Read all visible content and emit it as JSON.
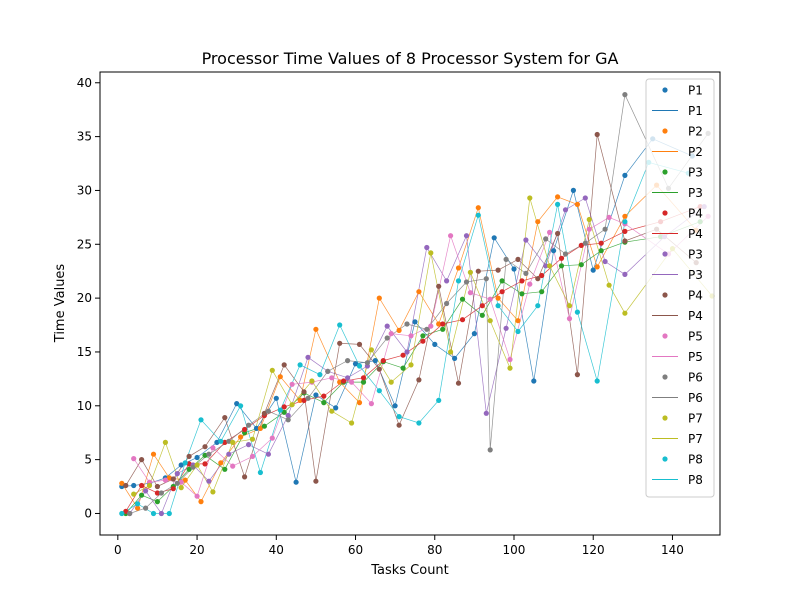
{
  "chart_data": {
    "type": "scatter",
    "title": "Processor Time Values of 8 Processor System for GA",
    "xlabel": "Tasks Count",
    "ylabel": "Time Values",
    "xlim": [
      -4.5,
      152
    ],
    "ylim": [
      -2,
      41
    ],
    "xticks": [
      0,
      20,
      40,
      60,
      80,
      100,
      120,
      140
    ],
    "yticks": [
      0,
      5,
      10,
      15,
      20,
      25,
      30,
      35,
      40
    ],
    "grid": false,
    "legend_position": "top-right",
    "legend": [
      {
        "label": "P1",
        "kind": "marker",
        "color": "#1f77b4"
      },
      {
        "label": "P1",
        "kind": "line",
        "color": "#1f77b4"
      },
      {
        "label": "P2",
        "kind": "marker",
        "color": "#ff7f0e"
      },
      {
        "label": "P2",
        "kind": "line",
        "color": "#ff7f0e"
      },
      {
        "label": "P3",
        "kind": "marker",
        "color": "#2ca02c"
      },
      {
        "label": "P3",
        "kind": "line",
        "color": "#2ca02c"
      },
      {
        "label": "P4",
        "kind": "marker",
        "color": "#d62728"
      },
      {
        "label": "P4",
        "kind": "line",
        "color": "#d62728"
      },
      {
        "label": "P3",
        "kind": "marker",
        "color": "#9467bd"
      },
      {
        "label": "P3",
        "kind": "line",
        "color": "#9467bd"
      },
      {
        "label": "P4",
        "kind": "marker",
        "color": "#8c564b"
      },
      {
        "label": "P4",
        "kind": "line",
        "color": "#8c564b"
      },
      {
        "label": "P5",
        "kind": "marker",
        "color": "#e377c2"
      },
      {
        "label": "P5",
        "kind": "line",
        "color": "#e377c2"
      },
      {
        "label": "P6",
        "kind": "marker",
        "color": "#7f7f7f"
      },
      {
        "label": "P6",
        "kind": "line",
        "color": "#7f7f7f"
      },
      {
        "label": "P7",
        "kind": "marker",
        "color": "#bcbd22"
      },
      {
        "label": "P7",
        "kind": "line",
        "color": "#bcbd22"
      },
      {
        "label": "P8",
        "kind": "marker",
        "color": "#17becf"
      },
      {
        "label": "P8",
        "kind": "line",
        "color": "#17becf"
      }
    ],
    "series": [
      {
        "color": "#1f77b4",
        "x": [
          1,
          4,
          8,
          12,
          16,
          20,
          25,
          30,
          35,
          40,
          45,
          50,
          55,
          60,
          65,
          70,
          75,
          80,
          85,
          90,
          95,
          100,
          105,
          110,
          115,
          120,
          128,
          135,
          145
        ],
        "y": [
          2.5,
          2.6,
          2.8,
          3.3,
          4.5,
          5.2,
          6.6,
          10.2,
          7.9,
          10.7,
          2.9,
          11.0,
          9.8,
          13.9,
          14.2,
          10.0,
          17.8,
          15.7,
          14.4,
          16.7,
          25.6,
          22.7,
          12.3,
          24.4,
          30.0,
          22.6,
          31.4,
          34.8,
          33.2
        ]
      },
      {
        "color": "#ff7f0e",
        "x": [
          1,
          5,
          9,
          13,
          17,
          21,
          26,
          31,
          36,
          41,
          46,
          50,
          56,
          61,
          66,
          71,
          76,
          81,
          86,
          91,
          96,
          101,
          106,
          111,
          116,
          121,
          128,
          136,
          146
        ],
        "y": [
          2.8,
          0.5,
          5.5,
          3.3,
          3.1,
          1.1,
          4.7,
          7.1,
          7.9,
          12.7,
          10.5,
          17.1,
          12.2,
          10.3,
          20.0,
          17.0,
          20.6,
          17.6,
          22.8,
          28.4,
          20.0,
          17.9,
          27.1,
          29.4,
          28.7,
          22.9,
          27.6,
          30.5,
          26.3
        ]
      },
      {
        "color": "#2ca02c",
        "x": [
          2,
          6,
          10,
          14,
          18,
          22,
          27,
          32,
          37,
          42,
          47,
          52,
          57,
          62,
          67,
          72,
          77,
          82,
          87,
          92,
          97,
          102,
          107,
          112,
          117,
          122,
          128,
          137,
          147
        ],
        "y": [
          0.0,
          1.7,
          1.1,
          2.5,
          4.1,
          5.4,
          4.1,
          7.5,
          8.1,
          9.4,
          11.2,
          10.3,
          12.2,
          12.2,
          14.1,
          13.5,
          16.5,
          17.1,
          19.9,
          18.4,
          21.6,
          20.4,
          20.6,
          23.0,
          23.1,
          24.4,
          25.2,
          25.7,
          27.1
        ]
      },
      {
        "color": "#d62728",
        "x": [
          2,
          6,
          10,
          14,
          18,
          22,
          27,
          32,
          37,
          42,
          47,
          52,
          57,
          62,
          67,
          72,
          77,
          82,
          87,
          92,
          97,
          102,
          107,
          112,
          117,
          122,
          128,
          137,
          147
        ],
        "y": [
          0.2,
          2.6,
          1.9,
          2.3,
          4.6,
          4.6,
          6.6,
          7.8,
          9.1,
          9.9,
          10.5,
          10.9,
          12.3,
          12.6,
          14.2,
          14.7,
          16.0,
          17.6,
          18.0,
          19.3,
          20.6,
          21.6,
          22.1,
          23.7,
          24.9,
          25.1,
          26.2,
          27.1,
          28.5
        ]
      },
      {
        "color": "#9467bd",
        "x": [
          3,
          7,
          11,
          15,
          19,
          23,
          28,
          33,
          38,
          43,
          48,
          53,
          58,
          63,
          68,
          73,
          78,
          83,
          88,
          93,
          98,
          103,
          108,
          113,
          118,
          123,
          128,
          138,
          148
        ],
        "y": [
          0.0,
          2.1,
          0.0,
          3.7,
          4.5,
          3.0,
          5.5,
          6.4,
          5.5,
          9.1,
          14.5,
          13.2,
          12.6,
          13.7,
          17.4,
          15.0,
          24.7,
          21.6,
          25.8,
          9.3,
          17.2,
          25.4,
          23.0,
          28.2,
          29.3,
          23.4,
          22.2,
          25.7,
          28.5
        ]
      },
      {
        "color": "#8c564b",
        "x": [
          2,
          6,
          10,
          14,
          18,
          22,
          27,
          32,
          37,
          42,
          47,
          50,
          56,
          61,
          66,
          71,
          76,
          81,
          86,
          91,
          96,
          101,
          106,
          111,
          116,
          121,
          128,
          136,
          146
        ],
        "y": [
          2.6,
          5.0,
          2.5,
          3.2,
          5.3,
          6.2,
          8.9,
          3.4,
          9.3,
          13.8,
          11.3,
          3.0,
          15.8,
          15.7,
          13.4,
          8.2,
          12.4,
          21.1,
          12.1,
          22.5,
          22.6,
          23.6,
          21.8,
          26.0,
          12.9,
          35.2,
          25.3,
          26.4,
          23.3
        ]
      },
      {
        "color": "#e377c2",
        "x": [
          4,
          8,
          12,
          16,
          20,
          24,
          29,
          34,
          39,
          44,
          49,
          54,
          59,
          64,
          69,
          74,
          79,
          84,
          89,
          94,
          99,
          104,
          109,
          114,
          119,
          124,
          128,
          139,
          149
        ],
        "y": [
          5.1,
          2.9,
          3.1,
          2.9,
          1.6,
          6.1,
          4.4,
          5.3,
          7.0,
          12.0,
          12.2,
          12.6,
          12.2,
          10.2,
          16.7,
          16.5,
          17.4,
          25.8,
          20.5,
          19.9,
          14.3,
          21.3,
          26.1,
          18.1,
          26.4,
          27.5,
          26.9,
          24.1,
          27.6
        ]
      },
      {
        "color": "#7f7f7f",
        "x": [
          3,
          7,
          11,
          15,
          19,
          23,
          28,
          33,
          38,
          43,
          48,
          53,
          58,
          63,
          68,
          73,
          78,
          83,
          88,
          93,
          94,
          98,
          103,
          108,
          113,
          118,
          123,
          128,
          139,
          149
        ],
        "y": [
          0.0,
          0.5,
          1.9,
          2.8,
          4.3,
          5.5,
          6.7,
          8.2,
          9.5,
          8.7,
          10.7,
          13.2,
          14.2,
          14.0,
          16.3,
          17.6,
          17.1,
          19.5,
          21.5,
          21.8,
          5.9,
          23.6,
          22.3,
          25.5,
          24.1,
          25.1,
          26.4,
          38.9,
          30.2,
          35.3
        ]
      },
      {
        "color": "#bcbd22",
        "x": [
          4,
          8,
          12,
          16,
          20,
          24,
          29,
          34,
          39,
          44,
          49,
          54,
          59,
          64,
          69,
          74,
          79,
          84,
          89,
          94,
          99,
          104,
          109,
          114,
          119,
          124,
          128,
          140,
          150
        ],
        "y": [
          1.8,
          2.6,
          6.6,
          2.4,
          4.5,
          2.0,
          6.6,
          6.9,
          13.3,
          10.1,
          12.3,
          9.5,
          8.4,
          15.2,
          12.2,
          13.8,
          24.2,
          15.0,
          22.4,
          17.9,
          13.5,
          29.3,
          23.0,
          19.3,
          27.3,
          21.2,
          18.6,
          24.6,
          20.2
        ]
      },
      {
        "color": "#17becf",
        "x": [
          1,
          5,
          9,
          13,
          17,
          21,
          26,
          31,
          36,
          41,
          46,
          51,
          56,
          61,
          66,
          71,
          76,
          81,
          86,
          91,
          96,
          101,
          106,
          111,
          116,
          121,
          128,
          134,
          144
        ],
        "y": [
          0.0,
          0.9,
          0.0,
          0.0,
          4.7,
          8.7,
          6.7,
          10.0,
          3.8,
          9.6,
          13.8,
          12.9,
          17.5,
          13.7,
          11.4,
          9.0,
          8.4,
          10.5,
          21.6,
          27.7,
          19.3,
          16.9,
          19.3,
          28.7,
          18.7,
          12.3,
          27.1,
          32.6,
          31.6
        ]
      }
    ]
  }
}
